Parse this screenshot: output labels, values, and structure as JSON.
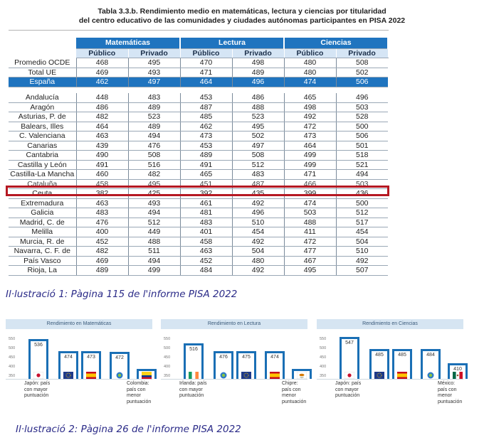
{
  "title_line1": "Tabla 3.3.b. Rendimiento medio en matemáticas, lectura y ciencias por titularidad",
  "title_line2": "del centro educativo de las comunidades y ciudades autónomas participantes en PISA 2022",
  "headers": {
    "subjects": [
      "Matemáticas",
      "Lectura",
      "Ciencias"
    ],
    "sub": [
      "Público",
      "Privado",
      "Público",
      "Privado",
      "Público",
      "Privado"
    ]
  },
  "rows_top": [
    {
      "name": "Promedio OCDE",
      "v": [
        "468",
        "495",
        "470",
        "498",
        "480",
        "508"
      ]
    },
    {
      "name": "Total UE",
      "v": [
        "469",
        "493",
        "471",
        "489",
        "480",
        "502"
      ]
    },
    {
      "name": "España",
      "v": [
        "462",
        "497",
        "464",
        "496",
        "474",
        "506"
      ]
    }
  ],
  "rows": [
    {
      "name": "Andalucía",
      "v": [
        "448",
        "483",
        "453",
        "486",
        "465",
        "496"
      ]
    },
    {
      "name": "Aragón",
      "v": [
        "486",
        "489",
        "487",
        "488",
        "498",
        "503"
      ]
    },
    {
      "name": "Asturias, P. de",
      "v": [
        "482",
        "523",
        "485",
        "523",
        "492",
        "528"
      ]
    },
    {
      "name": "Balears, Illes",
      "v": [
        "464",
        "489",
        "462",
        "495",
        "472",
        "500"
      ]
    },
    {
      "name": "C. Valenciana",
      "v": [
        "463",
        "494",
        "473",
        "502",
        "473",
        "506"
      ]
    },
    {
      "name": "Canarias",
      "v": [
        "439",
        "476",
        "453",
        "497",
        "464",
        "501"
      ]
    },
    {
      "name": "Cantabria",
      "v": [
        "490",
        "508",
        "489",
        "508",
        "499",
        "518"
      ]
    },
    {
      "name": "Castilla y León",
      "v": [
        "491",
        "516",
        "491",
        "512",
        "499",
        "521"
      ]
    },
    {
      "name": "Castilla-La Mancha",
      "v": [
        "460",
        "482",
        "465",
        "483",
        "471",
        "494"
      ]
    },
    {
      "name": "Cataluña",
      "v": [
        "458",
        "495",
        "451",
        "487",
        "466",
        "503"
      ]
    },
    {
      "name": "Ceuta",
      "v": [
        "382",
        "425",
        "392",
        "435",
        "399",
        "436"
      ]
    },
    {
      "name": "Extremadura",
      "v": [
        "463",
        "493",
        "461",
        "492",
        "474",
        "500"
      ]
    },
    {
      "name": "Galicia",
      "v": [
        "483",
        "494",
        "481",
        "496",
        "503",
        "512"
      ]
    },
    {
      "name": "Madrid, C. de",
      "v": [
        "476",
        "512",
        "483",
        "510",
        "488",
        "517"
      ]
    },
    {
      "name": "Melilla",
      "v": [
        "400",
        "449",
        "401",
        "454",
        "411",
        "454"
      ]
    },
    {
      "name": "Murcia, R. de",
      "v": [
        "452",
        "488",
        "458",
        "492",
        "472",
        "504"
      ]
    },
    {
      "name": "Navarra, C. F. de",
      "v": [
        "482",
        "511",
        "463",
        "504",
        "477",
        "510"
      ]
    },
    {
      "name": "País Vasco",
      "v": [
        "469",
        "494",
        "452",
        "480",
        "467",
        "492"
      ]
    },
    {
      "name": "Rioja, La",
      "v": [
        "489",
        "499",
        "484",
        "492",
        "495",
        "507"
      ]
    }
  ],
  "caption1": "Il·lustració 1: Pàgina 115 de l'informe PISA 2022",
  "caption2": "Il·lustració 2: Pàgina 26 de l'informe PISA 2022",
  "charts": [
    {
      "title": "Rendimiento en Matemáticas",
      "bars": [
        {
          "value": 536,
          "flag": "japan"
        },
        {
          "value": 474,
          "flag": "eu"
        },
        {
          "value": 473,
          "flag": "spain"
        },
        {
          "value": 472,
          "flag": "oecd"
        },
        {
          "value": 383,
          "flag": "colombia"
        }
      ],
      "label_left": "Japón: país con mayor puntuación",
      "label_right": "Colombia: país con menor puntuación"
    },
    {
      "title": "Rendimiento en Lectura",
      "bars": [
        {
          "value": 516,
          "flag": "ireland"
        },
        {
          "value": 476,
          "flag": "oecd"
        },
        {
          "value": 475,
          "flag": "eu"
        },
        {
          "value": 474,
          "flag": "spain"
        },
        {
          "value": 381,
          "flag": "cyprus"
        }
      ],
      "label_left": "Irlanda: país con mayor puntuación",
      "label_right": "Chipre: país con menor puntuación"
    },
    {
      "title": "Rendimiento en Ciencias",
      "bars": [
        {
          "value": 547,
          "flag": "japan"
        },
        {
          "value": 485,
          "flag": "eu"
        },
        {
          "value": 485,
          "flag": "spain"
        },
        {
          "value": 484,
          "flag": "oecd"
        },
        {
          "value": 410,
          "flag": "mexico"
        }
      ],
      "label_left": "Japón: país con mayor puntuación",
      "label_right": "México: país con menor puntuación"
    }
  ],
  "scale_ticks": [
    "550",
    "500",
    "450",
    "400",
    "350"
  ],
  "colors": {
    "header_blue": "#1f74bf",
    "subheader": "#d5e5f5",
    "highlight": "#b51822",
    "bar": "#1a6fb5"
  }
}
